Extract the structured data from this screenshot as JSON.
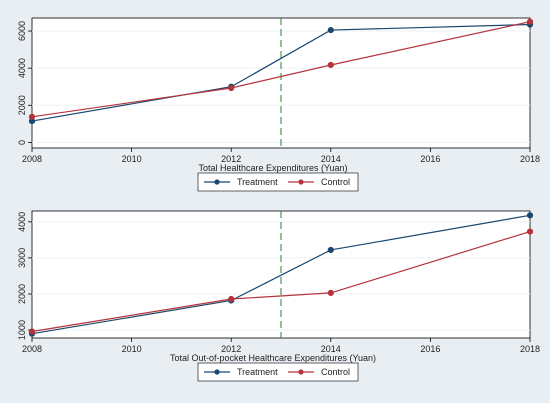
{
  "colors": {
    "background": "#e9eef3",
    "plot_background": "#ffffff",
    "treatment": "#1a476f",
    "control": "#b5333d",
    "reference_line": "#2e7d32"
  },
  "chart_data": [
    {
      "type": "line",
      "xlabel": "Total Healthcare Expenditures (Yuan)",
      "ylabel": "",
      "xlim": [
        2008,
        2018
      ],
      "ylim": [
        -300,
        6700
      ],
      "x_ticks": [
        2008,
        2010,
        2012,
        2014,
        2016,
        2018
      ],
      "y_ticks": [
        0,
        2000,
        4000,
        6000
      ],
      "reference_x": 2013,
      "x": [
        2008,
        2012,
        2014,
        2018
      ],
      "series": [
        {
          "name": "Treatment",
          "values": [
            1150,
            3000,
            6050,
            6350
          ]
        },
        {
          "name": "Control",
          "values": [
            1380,
            2930,
            4170,
            6500
          ]
        }
      ],
      "legend": {
        "position": "bottom",
        "items": [
          "Treatment",
          "Control"
        ]
      },
      "grid": "horizontal"
    },
    {
      "type": "line",
      "xlabel": "Total Out-of-pocket Healthcare Expenditures (Yuan)",
      "ylabel": "",
      "xlim": [
        2008,
        2018
      ],
      "ylim": [
        780,
        4300
      ],
      "x_ticks": [
        2008,
        2010,
        2012,
        2014,
        2016,
        2018
      ],
      "y_ticks": [
        1000,
        2000,
        3000,
        4000
      ],
      "reference_x": 2013,
      "x": [
        2008,
        2012,
        2014,
        2018
      ],
      "series": [
        {
          "name": "Treatment",
          "values": [
            900,
            1820,
            3220,
            4180
          ]
        },
        {
          "name": "Control",
          "values": [
            960,
            1860,
            2030,
            3730
          ]
        }
      ],
      "legend": {
        "position": "bottom",
        "items": [
          "Treatment",
          "Control"
        ]
      },
      "grid": "horizontal"
    }
  ]
}
